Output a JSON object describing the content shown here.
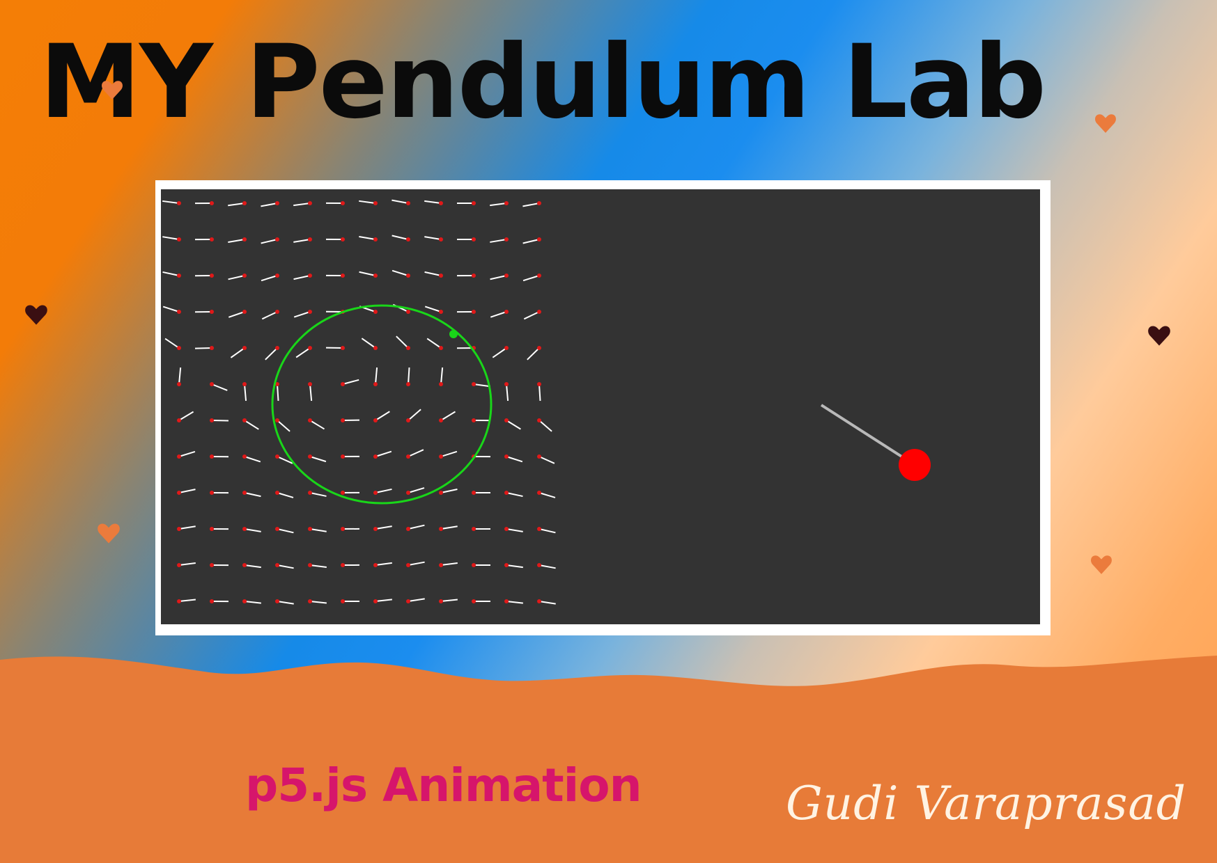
{
  "title": "MY Pendulum Lab",
  "subtitle": "p5.js Animation",
  "signature": "Gudi Varaprasad",
  "colors": {
    "canvas_background": "#333333",
    "frame": "#ffffff",
    "title": "#0b0b0b",
    "subtitle": "#d6156b",
    "signature": "#fff3e3",
    "sand": "#e77b38",
    "field_line": "#ffffff",
    "field_dot": "#e01919",
    "orbit": "#19d619",
    "pendulum_bob": "#ff0000",
    "pendulum_rod": "#b9b9b9",
    "heart_light": "#eb7b3c",
    "heart_dark": "#3a0f12"
  },
  "hearts": [
    {
      "name": "heart-top-left",
      "tone": "light"
    },
    {
      "name": "heart-top-right",
      "tone": "light"
    },
    {
      "name": "heart-mid-left",
      "tone": "dark"
    },
    {
      "name": "heart-mid-right",
      "tone": "dark"
    },
    {
      "name": "heart-lower-left",
      "tone": "light"
    },
    {
      "name": "heart-lower-right",
      "tone": "light"
    }
  ]
}
